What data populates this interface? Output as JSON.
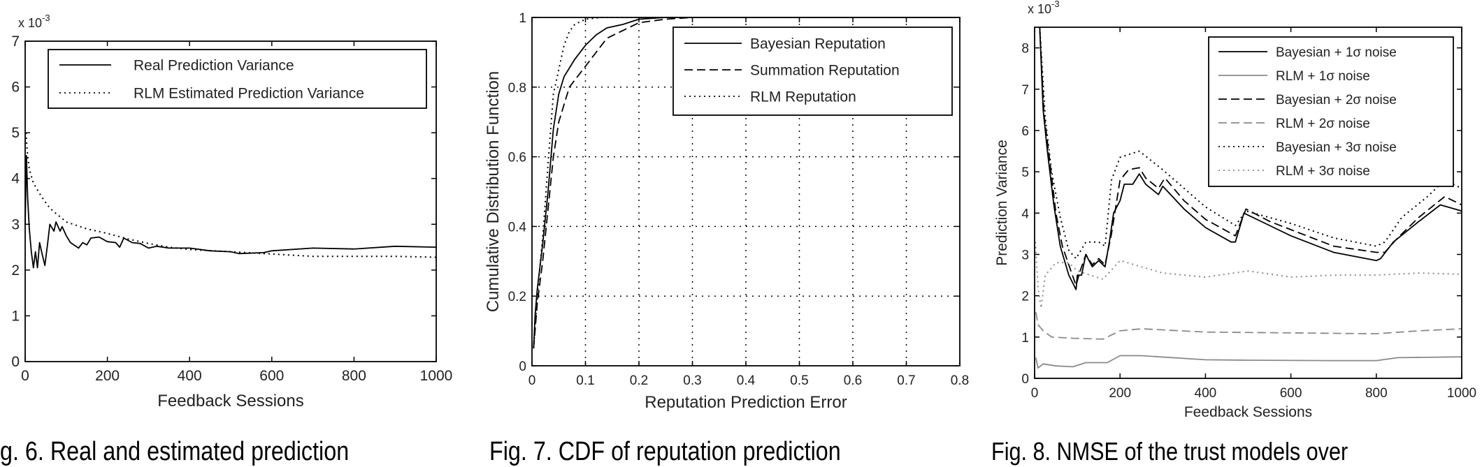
{
  "chart_data": [
    {
      "type": "line",
      "xlabel": "Feedback Sessions",
      "ylabel": "",
      "xlim": [
        0,
        1000
      ],
      "ylim": [
        0,
        7
      ],
      "xticks": [
        "0",
        "200",
        "400",
        "600",
        "800",
        "1000"
      ],
      "yticks": [
        "0",
        "1",
        "2",
        "3",
        "4",
        "5",
        "6",
        "7"
      ],
      "y_multiplier": {
        "base": "x 10",
        "exponent": "-3"
      },
      "grid": false,
      "legend_position": "top",
      "series": [
        {
          "name": "Real Prediction Variance",
          "style": "solid",
          "color": "#000000",
          "points": [
            [
              0,
              3.0
            ],
            [
              3,
              4.5
            ],
            [
              6,
              3.6
            ],
            [
              10,
              2.9
            ],
            [
              15,
              2.4
            ],
            [
              20,
              2.05
            ],
            [
              25,
              2.4
            ],
            [
              30,
              2.05
            ],
            [
              35,
              2.6
            ],
            [
              40,
              2.4
            ],
            [
              48,
              2.1
            ],
            [
              55,
              2.6
            ],
            [
              60,
              3.0
            ],
            [
              70,
              2.85
            ],
            [
              75,
              3.05
            ],
            [
              85,
              2.85
            ],
            [
              90,
              2.95
            ],
            [
              100,
              2.75
            ],
            [
              110,
              2.6
            ],
            [
              130,
              2.48
            ],
            [
              140,
              2.6
            ],
            [
              150,
              2.55
            ],
            [
              160,
              2.7
            ],
            [
              180,
              2.72
            ],
            [
              200,
              2.62
            ],
            [
              220,
              2.6
            ],
            [
              230,
              2.5
            ],
            [
              240,
              2.7
            ],
            [
              260,
              2.6
            ],
            [
              280,
              2.58
            ],
            [
              300,
              2.48
            ],
            [
              320,
              2.52
            ],
            [
              350,
              2.48
            ],
            [
              400,
              2.48
            ],
            [
              450,
              2.42
            ],
            [
              500,
              2.4
            ],
            [
              520,
              2.36
            ],
            [
              580,
              2.38
            ],
            [
              600,
              2.42
            ],
            [
              700,
              2.48
            ],
            [
              800,
              2.46
            ],
            [
              900,
              2.52
            ],
            [
              1000,
              2.5
            ]
          ]
        },
        {
          "name": "RLM Estimated Prediction Variance",
          "style": "dotted",
          "color": "#000000",
          "points": [
            [
              2,
              5.0
            ],
            [
              5,
              4.6
            ],
            [
              10,
              4.2
            ],
            [
              20,
              3.9
            ],
            [
              40,
              3.6
            ],
            [
              60,
              3.35
            ],
            [
              80,
              3.2
            ],
            [
              100,
              3.05
            ],
            [
              150,
              2.9
            ],
            [
              200,
              2.8
            ],
            [
              250,
              2.68
            ],
            [
              300,
              2.58
            ],
            [
              350,
              2.5
            ],
            [
              400,
              2.45
            ],
            [
              500,
              2.4
            ],
            [
              600,
              2.35
            ],
            [
              700,
              2.3
            ],
            [
              800,
              2.3
            ],
            [
              900,
              2.3
            ],
            [
              1000,
              2.28
            ]
          ]
        }
      ]
    },
    {
      "type": "line",
      "xlabel": "Reputation Prediction Error",
      "ylabel": "Cumulative Distribution Function",
      "xlim": [
        0,
        0.8
      ],
      "ylim": [
        0,
        1
      ],
      "xticks": [
        "0",
        "0.1",
        "0.2",
        "0.3",
        "0.4",
        "0.5",
        "0.6",
        "0.7",
        "0.8"
      ],
      "yticks": [
        "0",
        "0.2",
        "0.4",
        "0.6",
        "0.8",
        "1"
      ],
      "grid": true,
      "legend_position": "top-right",
      "series": [
        {
          "name": "Bayesian Reputation",
          "style": "solid",
          "color": "#000000",
          "points": [
            [
              0.003,
              0.05
            ],
            [
              0.006,
              0.15
            ],
            [
              0.01,
              0.22
            ],
            [
              0.02,
              0.35
            ],
            [
              0.03,
              0.5
            ],
            [
              0.04,
              0.68
            ],
            [
              0.05,
              0.78
            ],
            [
              0.06,
              0.83
            ],
            [
              0.08,
              0.88
            ],
            [
              0.1,
              0.92
            ],
            [
              0.12,
              0.95
            ],
            [
              0.14,
              0.97
            ],
            [
              0.17,
              0.98
            ],
            [
              0.2,
              0.995
            ],
            [
              0.25,
              1
            ],
            [
              0.8,
              1
            ]
          ]
        },
        {
          "name": "Summation Reputation",
          "style": "dashed",
          "color": "#000000",
          "points": [
            [
              0.003,
              0.05
            ],
            [
              0.01,
              0.18
            ],
            [
              0.02,
              0.3
            ],
            [
              0.03,
              0.45
            ],
            [
              0.04,
              0.6
            ],
            [
              0.05,
              0.7
            ],
            [
              0.07,
              0.8
            ],
            [
              0.1,
              0.86
            ],
            [
              0.12,
              0.9
            ],
            [
              0.14,
              0.94
            ],
            [
              0.18,
              0.97
            ],
            [
              0.2,
              0.985
            ],
            [
              0.25,
              0.995
            ],
            [
              0.3,
              1
            ],
            [
              0.8,
              1
            ]
          ]
        },
        {
          "name": "RLM Reputation",
          "style": "dotted",
          "color": "#000000",
          "points": [
            [
              0.003,
              0.05
            ],
            [
              0.01,
              0.2
            ],
            [
              0.02,
              0.37
            ],
            [
              0.03,
              0.58
            ],
            [
              0.04,
              0.78
            ],
            [
              0.05,
              0.85
            ],
            [
              0.06,
              0.92
            ],
            [
              0.07,
              0.96
            ],
            [
              0.08,
              0.98
            ],
            [
              0.1,
              0.995
            ],
            [
              0.13,
              1
            ],
            [
              0.8,
              1
            ]
          ]
        }
      ]
    },
    {
      "type": "line",
      "xlabel": "Feedback Sessions",
      "ylabel": "Prediction Variance",
      "xlim": [
        0,
        1000
      ],
      "ylim": [
        0,
        8.5
      ],
      "xticks": [
        "0",
        "200",
        "400",
        "600",
        "800",
        "1000"
      ],
      "yticks": [
        "0",
        "1",
        "2",
        "3",
        "4",
        "5",
        "6",
        "7",
        "8"
      ],
      "y_multiplier": {
        "base": "x 10",
        "exponent": "-3"
      },
      "grid": false,
      "legend_position": "top-right",
      "series": [
        {
          "name": "Bayesian + 1σ noise",
          "style": "solid",
          "color": "#000000",
          "points": [
            [
              12,
              8.5
            ],
            [
              20,
              6.5
            ],
            [
              30,
              5.5
            ],
            [
              45,
              4.2
            ],
            [
              60,
              3.2
            ],
            [
              80,
              2.5
            ],
            [
              97,
              2.15
            ],
            [
              100,
              2.5
            ],
            [
              110,
              2.5
            ],
            [
              120,
              3.0
            ],
            [
              135,
              2.7
            ],
            [
              150,
              2.85
            ],
            [
              165,
              2.7
            ],
            [
              175,
              3.3
            ],
            [
              185,
              4.0
            ],
            [
              200,
              4.3
            ],
            [
              210,
              4.7
            ],
            [
              230,
              4.7
            ],
            [
              245,
              4.95
            ],
            [
              260,
              4.7
            ],
            [
              290,
              4.45
            ],
            [
              300,
              4.65
            ],
            [
              350,
              4.1
            ],
            [
              400,
              3.65
            ],
            [
              460,
              3.3
            ],
            [
              470,
              3.3
            ],
            [
              490,
              4.0
            ],
            [
              550,
              3.7
            ],
            [
              600,
              3.45
            ],
            [
              700,
              3.05
            ],
            [
              800,
              2.85
            ],
            [
              810,
              2.9
            ],
            [
              840,
              3.3
            ],
            [
              900,
              3.8
            ],
            [
              950,
              4.2
            ],
            [
              1000,
              4.05
            ]
          ]
        },
        {
          "name": "RLM + 1σ noise",
          "style": "solid",
          "color": "#8a8a8a",
          "points": [
            [
              3,
              0.5
            ],
            [
              8,
              0.25
            ],
            [
              20,
              0.35
            ],
            [
              50,
              0.3
            ],
            [
              90,
              0.28
            ],
            [
              120,
              0.38
            ],
            [
              170,
              0.38
            ],
            [
              200,
              0.55
            ],
            [
              250,
              0.55
            ],
            [
              400,
              0.45
            ],
            [
              500,
              0.44
            ],
            [
              700,
              0.43
            ],
            [
              800,
              0.43
            ],
            [
              850,
              0.5
            ],
            [
              1000,
              0.52
            ]
          ]
        },
        {
          "name": "Bayesian + 2σ noise",
          "style": "dashed",
          "color": "#000000",
          "points": [
            [
              12,
              8.5
            ],
            [
              22,
              6.4
            ],
            [
              35,
              5.3
            ],
            [
              50,
              4.0
            ],
            [
              65,
              3.2
            ],
            [
              85,
              2.6
            ],
            [
              97,
              2.25
            ],
            [
              105,
              2.55
            ],
            [
              120,
              3.0
            ],
            [
              135,
              2.75
            ],
            [
              150,
              2.9
            ],
            [
              165,
              2.75
            ],
            [
              180,
              3.5
            ],
            [
              200,
              4.8
            ],
            [
              220,
              5.05
            ],
            [
              245,
              5.1
            ],
            [
              260,
              4.85
            ],
            [
              290,
              4.6
            ],
            [
              305,
              4.85
            ],
            [
              350,
              4.3
            ],
            [
              400,
              3.85
            ],
            [
              470,
              3.45
            ],
            [
              495,
              4.1
            ],
            [
              550,
              3.8
            ],
            [
              600,
              3.6
            ],
            [
              700,
              3.2
            ],
            [
              800,
              3.05
            ],
            [
              820,
              3.05
            ],
            [
              850,
              3.4
            ],
            [
              900,
              3.9
            ],
            [
              960,
              4.4
            ],
            [
              1000,
              4.2
            ]
          ]
        },
        {
          "name": "RLM + 2σ noise",
          "style": "dashed",
          "color": "#8a8a8a",
          "points": [
            [
              3,
              1.6
            ],
            [
              8,
              1.3
            ],
            [
              20,
              1.15
            ],
            [
              40,
              1.0
            ],
            [
              90,
              0.97
            ],
            [
              160,
              0.95
            ],
            [
              200,
              1.15
            ],
            [
              250,
              1.2
            ],
            [
              400,
              1.12
            ],
            [
              600,
              1.1
            ],
            [
              800,
              1.08
            ],
            [
              900,
              1.15
            ],
            [
              1000,
              1.2
            ]
          ]
        },
        {
          "name": "Bayesian + 3σ noise",
          "style": "dotted",
          "color": "#000000",
          "points": [
            [
              12,
              8.5
            ],
            [
              25,
              6.3
            ],
            [
              40,
              5.0
            ],
            [
              60,
              3.9
            ],
            [
              80,
              3.1
            ],
            [
              97,
              2.9
            ],
            [
              120,
              3.3
            ],
            [
              150,
              3.3
            ],
            [
              165,
              3.2
            ],
            [
              180,
              4.8
            ],
            [
              200,
              5.35
            ],
            [
              245,
              5.5
            ],
            [
              300,
              5.05
            ],
            [
              350,
              4.6
            ],
            [
              400,
              4.15
            ],
            [
              470,
              3.7
            ],
            [
              495,
              4.05
            ],
            [
              600,
              3.75
            ],
            [
              700,
              3.4
            ],
            [
              800,
              3.2
            ],
            [
              820,
              3.3
            ],
            [
              860,
              3.9
            ],
            [
              920,
              4.4
            ],
            [
              960,
              4.8
            ],
            [
              1000,
              4.6
            ]
          ]
        },
        {
          "name": "RLM + 3σ noise",
          "style": "dotted",
          "color": "#8a8a8a",
          "points": [
            [
              2,
              3.3
            ],
            [
              8,
              2.2
            ],
            [
              15,
              1.7
            ],
            [
              25,
              2.5
            ],
            [
              50,
              2.8
            ],
            [
              80,
              2.8
            ],
            [
              100,
              2.6
            ],
            [
              130,
              2.5
            ],
            [
              160,
              2.4
            ],
            [
              200,
              2.85
            ],
            [
              250,
              2.7
            ],
            [
              300,
              2.55
            ],
            [
              400,
              2.45
            ],
            [
              500,
              2.6
            ],
            [
              600,
              2.45
            ],
            [
              700,
              2.5
            ],
            [
              800,
              2.5
            ],
            [
              900,
              2.55
            ],
            [
              1000,
              2.52
            ]
          ]
        }
      ]
    }
  ],
  "captions": [
    "g. 6.  Real and estimated prediction",
    "Fig. 7.  CDF of reputation prediction",
    "Fig. 8.  NMSE of the trust models over"
  ]
}
